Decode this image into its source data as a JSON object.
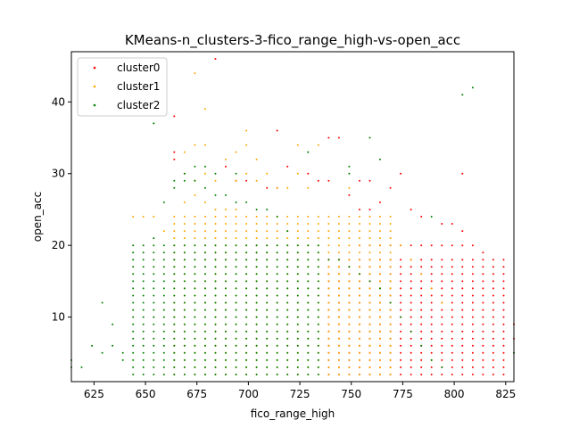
{
  "chart_data": {
    "type": "scatter",
    "title": "KMeans-n_clusters-3-fico_range_high-vs-open_acc",
    "xlabel": "fico_range_high",
    "ylabel": "open_acc",
    "xlim": [
      614,
      829
    ],
    "ylim": [
      1,
      47
    ],
    "xticks": [
      625,
      650,
      675,
      700,
      725,
      750,
      775,
      800,
      825
    ],
    "yticks": [
      10,
      20,
      30,
      40
    ],
    "grid": false,
    "legend_position": "top-left",
    "series": [
      {
        "name": "cluster0",
        "color": "#ff0000",
        "points": [
          [
            684,
            46
          ],
          [
            664,
            38
          ],
          [
            714,
            36
          ],
          [
            739,
            35
          ],
          [
            744,
            35
          ],
          [
            664,
            33
          ],
          [
            664,
            32
          ],
          [
            719,
            31
          ],
          [
            729,
            30
          ],
          [
            734,
            29
          ],
          [
            739,
            29
          ],
          [
            754,
            29
          ],
          [
            759,
            29
          ],
          [
            774,
            30
          ],
          [
            769,
            28
          ],
          [
            804,
            30
          ],
          [
            714,
            28
          ],
          [
            749,
            27
          ],
          [
            764,
            26
          ],
          [
            779,
            25
          ],
          [
            784,
            24
          ],
          [
            794,
            23
          ],
          [
            799,
            23
          ],
          [
            804,
            22
          ],
          [
            809,
            20
          ],
          [
            814,
            19
          ],
          [
            819,
            18
          ],
          [
            824,
            15
          ],
          [
            829,
            9
          ],
          [
            754,
            25
          ],
          [
            759,
            25
          ],
          [
            689,
            31
          ],
          [
            694,
            29
          ],
          [
            699,
            29
          ],
          [
            709,
            28
          ],
          [
            754,
            20
          ],
          [
            759,
            20
          ],
          [
            764,
            20
          ],
          [
            769,
            20
          ],
          [
            774,
            20
          ],
          [
            779,
            20
          ],
          [
            784,
            20
          ],
          [
            789,
            20
          ],
          [
            794,
            20
          ],
          [
            799,
            20
          ],
          [
            804,
            20
          ],
          [
            809,
            18
          ],
          [
            814,
            16
          ],
          [
            819,
            14
          ],
          [
            824,
            12
          ],
          [
            829,
            7
          ]
        ],
        "grid_fill": [
          {
            "x_from": 739,
            "x_to": 824,
            "x_step": 5,
            "y_from": 2,
            "y_to": 18,
            "y_step": 1
          }
        ]
      },
      {
        "name": "cluster1",
        "color": "#ffa500",
        "points": [
          [
            674,
            44
          ],
          [
            679,
            39
          ],
          [
            699,
            36
          ],
          [
            699,
            34
          ],
          [
            674,
            34
          ],
          [
            679,
            34
          ],
          [
            694,
            33
          ],
          [
            724,
            34
          ],
          [
            734,
            34
          ],
          [
            669,
            33
          ],
          [
            689,
            32
          ],
          [
            704,
            32
          ],
          [
            709,
            30
          ],
          [
            724,
            30
          ],
          [
            699,
            30
          ],
          [
            679,
            30
          ],
          [
            669,
            30
          ],
          [
            674,
            29
          ],
          [
            684,
            29
          ],
          [
            694,
            29
          ],
          [
            704,
            29
          ],
          [
            714,
            28
          ],
          [
            719,
            28
          ],
          [
            729,
            28
          ],
          [
            749,
            28
          ],
          [
            644,
            24
          ],
          [
            649,
            24
          ],
          [
            654,
            24
          ],
          [
            659,
            22
          ],
          [
            664,
            24
          ],
          [
            669,
            26
          ],
          [
            674,
            27
          ],
          [
            679,
            26
          ],
          [
            684,
            25
          ],
          [
            689,
            25
          ],
          [
            694,
            25
          ],
          [
            699,
            24
          ],
          [
            704,
            24
          ],
          [
            709,
            24
          ],
          [
            714,
            24
          ],
          [
            719,
            24
          ],
          [
            724,
            24
          ],
          [
            729,
            24
          ],
          [
            734,
            24
          ],
          [
            739,
            24
          ],
          [
            744,
            24
          ],
          [
            749,
            22
          ],
          [
            754,
            22
          ],
          [
            759,
            22
          ],
          [
            764,
            22
          ],
          [
            769,
            22
          ],
          [
            774,
            20
          ],
          [
            779,
            18
          ],
          [
            784,
            16
          ],
          [
            789,
            14
          ],
          [
            794,
            12
          ]
        ],
        "grid_fill": [
          {
            "x_from": 664,
            "x_to": 769,
            "x_step": 5,
            "y_from": 2,
            "y_to": 24,
            "y_step": 1
          }
        ]
      },
      {
        "name": "cluster2",
        "color": "#008000",
        "points": [
          [
            809,
            42
          ],
          [
            804,
            41
          ],
          [
            654,
            37
          ],
          [
            759,
            35
          ],
          [
            764,
            32
          ],
          [
            729,
            33
          ],
          [
            749,
            31
          ],
          [
            749,
            30
          ],
          [
            674,
            31
          ],
          [
            679,
            31
          ],
          [
            669,
            30
          ],
          [
            664,
            29
          ],
          [
            684,
            30
          ],
          [
            694,
            30
          ],
          [
            789,
            24
          ],
          [
            614,
            4
          ],
          [
            614,
            3
          ],
          [
            619,
            3
          ],
          [
            624,
            6
          ],
          [
            629,
            12
          ],
          [
            629,
            5
          ],
          [
            634,
            9
          ],
          [
            634,
            6
          ],
          [
            639,
            4
          ],
          [
            639,
            5
          ],
          [
            644,
            10
          ],
          [
            649,
            15
          ],
          [
            654,
            21
          ],
          [
            659,
            26
          ],
          [
            664,
            28
          ],
          [
            669,
            29
          ],
          [
            674,
            29
          ],
          [
            679,
            28
          ],
          [
            684,
            27
          ],
          [
            689,
            27
          ],
          [
            694,
            26
          ],
          [
            699,
            26
          ],
          [
            704,
            25
          ],
          [
            709,
            25
          ],
          [
            714,
            24
          ],
          [
            719,
            22
          ],
          [
            724,
            20
          ],
          [
            729,
            20
          ],
          [
            734,
            19
          ],
          [
            739,
            18
          ],
          [
            744,
            18
          ],
          [
            749,
            17
          ],
          [
            754,
            16
          ],
          [
            759,
            15
          ],
          [
            764,
            14
          ],
          [
            769,
            12
          ],
          [
            774,
            10
          ],
          [
            779,
            8
          ],
          [
            784,
            6
          ],
          [
            789,
            4
          ],
          [
            794,
            3
          ],
          [
            829,
            5
          ]
        ],
        "grid_fill": [
          {
            "x_from": 644,
            "x_to": 734,
            "x_step": 5,
            "y_from": 2,
            "y_to": 20,
            "y_step": 1
          }
        ]
      }
    ]
  }
}
